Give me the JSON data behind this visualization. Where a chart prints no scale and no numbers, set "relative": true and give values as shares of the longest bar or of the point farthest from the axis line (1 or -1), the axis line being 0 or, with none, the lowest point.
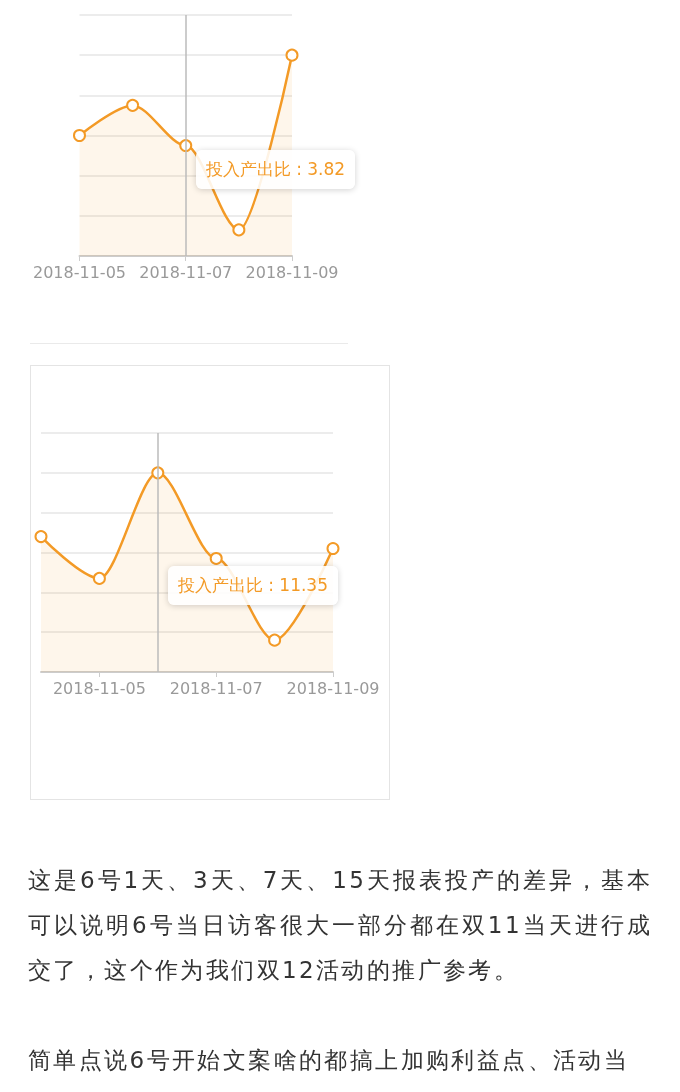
{
  "chart_data": [
    {
      "type": "area",
      "x": [
        "2018-11-05",
        "2018-11-06",
        "2018-11-07",
        "2018-11-08",
        "2018-11-09"
      ],
      "xlim": [
        "2018-11-05",
        "2018-11-09"
      ],
      "xticks": [
        "2018-11-05",
        "2018-11-07",
        "2018-11-09"
      ],
      "series": [
        {
          "color": "#f39a26",
          "values": [
            0.6,
            0.75,
            0.55,
            0.13,
            1
          ]
        }
      ],
      "relative": true,
      "grid": "y",
      "marker": "circle",
      "ref_lines": [
        {
          "axis": "x",
          "value": "2018-11-07",
          "label": "投入产出比 : 3.82",
          "color": "#bbbbbb"
        }
      ]
    },
    {
      "type": "area",
      "x": [
        "2018-11-04",
        "2018-11-05",
        "2018-11-06",
        "2018-11-07",
        "2018-11-08",
        "2018-11-09"
      ],
      "xlim": [
        "2018-11-04",
        "2018-11-09"
      ],
      "xticks": [
        "2018-11-05",
        "2018-11-07",
        "2018-11-09"
      ],
      "series": [
        {
          "color": "#f39a26",
          "values": [
            0.68,
            0.47,
            1,
            0.57,
            0.16,
            0.62
          ]
        }
      ],
      "relative": true,
      "grid": "y",
      "marker": "circle",
      "ref_lines": [
        {
          "axis": "x",
          "value": "2018-11-06",
          "label": "投入产出比 : 11.35",
          "color": "#bbbbbb"
        }
      ]
    },
    {
      "type": "other",
      "annotations": [
        "这是6号1天、3天、7天、15天报表投产的差异，基本可以说明6号当日访客很大一部分都在双11当天进行成交了，这个作为我们双12活动的推广参考。",
        "简单点说6号开始文案啥的都搞上加购利益点、活动当"
      ]
    }
  ]
}
